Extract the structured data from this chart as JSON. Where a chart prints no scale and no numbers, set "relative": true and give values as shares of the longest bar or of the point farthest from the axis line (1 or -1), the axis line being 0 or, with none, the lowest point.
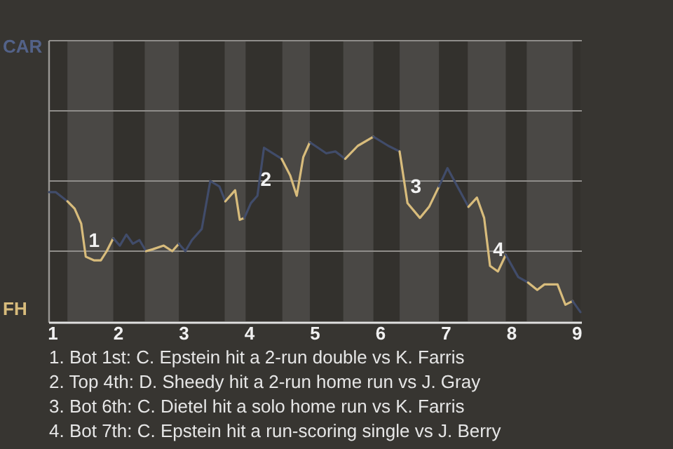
{
  "chart_data": {
    "type": "line",
    "relative": true,
    "xlim": [
      0.94,
      9.05
    ],
    "xticks": [
      1,
      2,
      3,
      4,
      5,
      6,
      7,
      8,
      9
    ],
    "marker": "none",
    "ref_lines": [
      {
        "axis": "y",
        "value": 0.38,
        "color": "#8f8d8a"
      },
      {
        "axis": "y",
        "value": 0.76,
        "color": "#8f8d8a"
      },
      {
        "axis": "y",
        "value": 1.14,
        "color": "#8f8d8a"
      }
    ],
    "line_style": "solid",
    "bands": [
      {
        "axis": "x",
        "from": 1.22,
        "to": 1.92,
        "color": "#4a4845"
      },
      {
        "axis": "x",
        "from": 2.4,
        "to": 2.92,
        "color": "#4a4845"
      },
      {
        "axis": "x",
        "from": 3.62,
        "to": 3.94,
        "color": "#4a4845"
      },
      {
        "axis": "x",
        "from": 4.5,
        "to": 4.92,
        "color": "#4a4845"
      },
      {
        "axis": "x",
        "from": 5.43,
        "to": 5.89,
        "color": "#4a4845"
      },
      {
        "axis": "x",
        "from": 6.29,
        "to": 6.89,
        "color": "#4a4845"
      },
      {
        "axis": "x",
        "from": 7.33,
        "to": 7.91,
        "color": "#4a4845"
      },
      {
        "axis": "x",
        "from": 8.23,
        "to": 8.93,
        "color": "#4a4845"
      }
    ],
    "series": [
      {
        "color": "#414c6a",
        "x": [
          0.94,
          1.04,
          1.22
        ],
        "values": [
          0.7,
          0.7,
          0.65
        ]
      },
      {
        "color": "#d8bc7c",
        "x": [
          1.22,
          1.33,
          1.43,
          1.5,
          1.63,
          1.73,
          1.82,
          1.92
        ],
        "values": [
          0.65,
          0.61,
          0.53,
          0.35,
          0.33,
          0.33,
          0.38,
          0.45
        ]
      },
      {
        "color": "#414c6a",
        "x": [
          1.92,
          2.02,
          2.12,
          2.22,
          2.32,
          2.42
        ],
        "values": [
          0.45,
          0.41,
          0.47,
          0.42,
          0.44,
          0.38
        ]
      },
      {
        "color": "#d8bc7c",
        "x": [
          2.42,
          2.52,
          2.69,
          2.82,
          2.92
        ],
        "values": [
          0.38,
          0.39,
          0.41,
          0.38,
          0.42
        ]
      },
      {
        "color": "#414c6a",
        "x": [
          2.92,
          3.02,
          3.12,
          3.27,
          3.4,
          3.54,
          3.63
        ],
        "values": [
          0.42,
          0.38,
          0.44,
          0.5,
          0.76,
          0.73,
          0.65
        ]
      },
      {
        "color": "#d8bc7c",
        "x": [
          3.63,
          3.78,
          3.85,
          3.92
        ],
        "values": [
          0.65,
          0.71,
          0.55,
          0.56
        ]
      },
      {
        "color": "#414c6a",
        "x": [
          3.92,
          4.02,
          4.12,
          4.22,
          4.49
        ],
        "values": [
          0.56,
          0.64,
          0.68,
          0.94,
          0.88
        ]
      },
      {
        "color": "#d8bc7c",
        "x": [
          4.49,
          4.62,
          4.72,
          4.82,
          4.92
        ],
        "values": [
          0.88,
          0.79,
          0.68,
          0.89,
          0.97
        ]
      },
      {
        "color": "#414c6a",
        "x": [
          4.92,
          5.17,
          5.31,
          5.46
        ],
        "values": [
          0.97,
          0.91,
          0.92,
          0.88
        ]
      },
      {
        "color": "#d8bc7c",
        "x": [
          5.46,
          5.65,
          5.89
        ],
        "values": [
          0.88,
          0.95,
          1
        ]
      },
      {
        "color": "#414c6a",
        "x": [
          5.89,
          6.12,
          6.29
        ],
        "values": [
          1,
          0.95,
          0.92
        ]
      },
      {
        "color": "#d8bc7c",
        "x": [
          6.29,
          6.41,
          6.6,
          6.74,
          6.89
        ],
        "values": [
          0.92,
          0.64,
          0.56,
          0.62,
          0.73
        ]
      },
      {
        "color": "#414c6a",
        "x": [
          6.89,
          7.02,
          7.34
        ],
        "values": [
          0.73,
          0.83,
          0.62
        ]
      },
      {
        "color": "#d8bc7c",
        "x": [
          7.34,
          7.47,
          7.58,
          7.67,
          7.79,
          7.91
        ],
        "values": [
          0.62,
          0.67,
          0.56,
          0.3,
          0.27,
          0.36
        ]
      },
      {
        "color": "#414c6a",
        "x": [
          7.91,
          8.1,
          8.25
        ],
        "values": [
          0.36,
          0.24,
          0.21
        ]
      },
      {
        "color": "#d8bc7c",
        "x": [
          8.25,
          8.39,
          8.5,
          8.7,
          8.82,
          8.93
        ],
        "values": [
          0.21,
          0.17,
          0.2,
          0.2,
          0.09,
          0.11
        ]
      },
      {
        "color": "#414c6a",
        "x": [
          8.93,
          9.05
        ],
        "values": [
          0.11,
          0.05
        ]
      }
    ],
    "annotations": [
      "CAR",
      "FH",
      {
        "text": "1",
        "x": 1.5,
        "y": 0.35
      },
      {
        "text": "2",
        "x": 4.12,
        "y": 0.68
      },
      {
        "text": "3",
        "x": 6.41,
        "y": 0.64
      },
      {
        "text": "4",
        "x": 7.67,
        "y": 0.3
      },
      "1. Bot 1st: C. Epstein hit a 2-run double vs K. Farris",
      "2. Top 4th: D. Sheedy hit a 2-run home run vs J. Gray",
      "3. Bot 6th: C. Dietel hit a solo home run vs K. Farris",
      "4. Bot 7th: C. Epstein hit a run-scoring single vs J. Berry"
    ]
  }
}
